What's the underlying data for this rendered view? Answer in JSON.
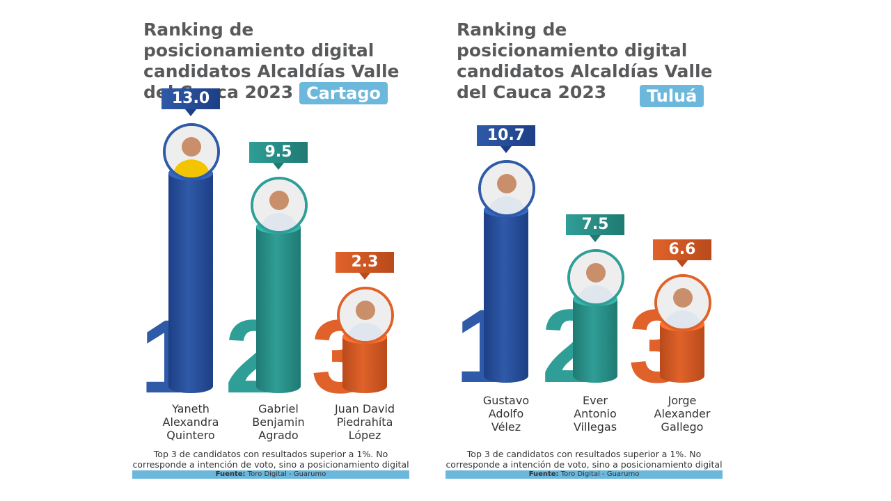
{
  "colors": {
    "blue": "#2f5aa8",
    "teal": "#2f9e96",
    "orange": "#e0622a",
    "badge": "#6cb8dc",
    "title": "#58595b"
  },
  "chart_data": [
    {
      "type": "bar",
      "title": "Ranking de posicionamiento digital candidatos Alcaldías Valle del Cauca 2023",
      "subtitle": "Cartago",
      "categories": [
        "Yaneth Alexandra Quintero",
        "Gabriel Benjamin Agrado",
        "Juan David Piedrahíta López"
      ],
      "ranks": [
        "1",
        "2",
        "3"
      ],
      "values": [
        13.0,
        9.5,
        2.3
      ],
      "value_labels": [
        "13.0",
        "9.5",
        "2.3"
      ],
      "name_lines": [
        [
          "Yaneth",
          "Alexandra",
          "Quintero"
        ],
        [
          "Gabriel",
          "Benjamin",
          "Agrado"
        ],
        [
          "Juan David",
          "Piedrahíta",
          "López"
        ]
      ],
      "note_lines": [
        "Top 3 de candidatos con resultados superior a 1%. No",
        "corresponde a  intención de voto, sino a posicionamiento digital"
      ],
      "source_label": "Fuente:",
      "source": "Toro Digital - Guarumo"
    },
    {
      "type": "bar",
      "title": "Ranking de posicionamiento digital candidatos Alcaldías Valle del Cauca 2023",
      "subtitle": "Tuluá",
      "categories": [
        "Gustavo Adolfo Vélez",
        "Ever Antonio Villegas",
        "Jorge Alexander Gallego"
      ],
      "ranks": [
        "1",
        "2",
        "3"
      ],
      "values": [
        10.7,
        7.5,
        6.6
      ],
      "value_labels": [
        "10.7",
        "7.5",
        "6.6"
      ],
      "name_lines": [
        [
          "Gustavo",
          "Adolfo",
          "Vélez"
        ],
        [
          "Ever",
          "Antonio",
          "Villegas"
        ],
        [
          "Jorge",
          "Alexander",
          "Gallego"
        ]
      ],
      "note_lines": [
        "Top 3 de candidatos con resultados superior a 1%. No",
        "corresponde a  intención de voto, sino a posicionamiento digital"
      ],
      "source_label": "Fuente:",
      "source": "Toro Digital - Guarumo"
    }
  ]
}
